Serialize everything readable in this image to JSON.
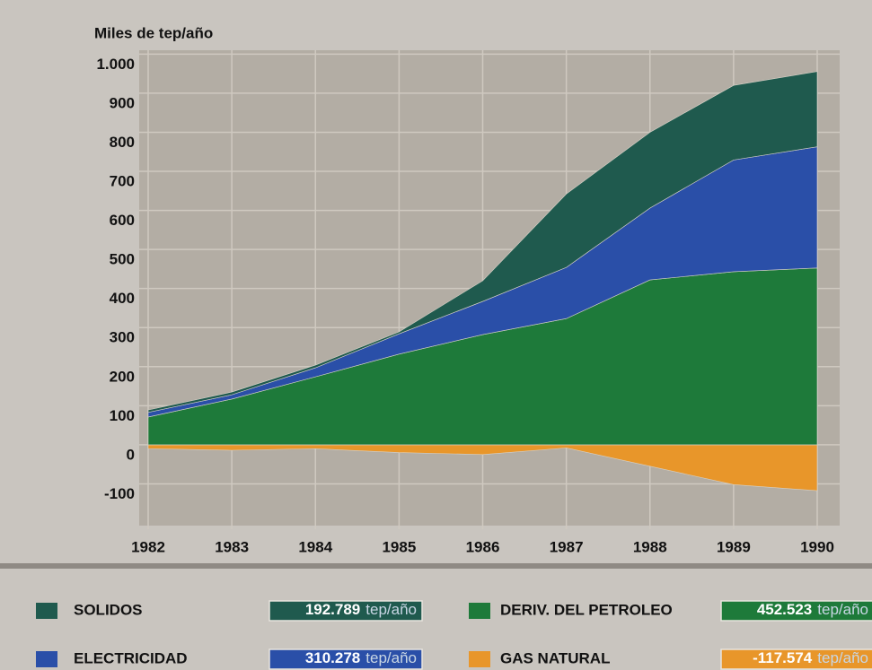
{
  "chart_data": {
    "type": "stacked_area",
    "y_label": "Miles de tep/año",
    "x": [
      1982,
      1983,
      1984,
      1985,
      1986,
      1987,
      1988,
      1989,
      1990
    ],
    "xlim": [
      1982,
      1990
    ],
    "xticks": [
      1982,
      1983,
      1984,
      1985,
      1986,
      1987,
      1988,
      1989,
      1990
    ],
    "ylim": [
      -200,
      1010
    ],
    "yticks": [
      -100,
      0,
      100,
      200,
      300,
      400,
      500,
      600,
      700,
      800,
      900,
      {
        "value": 1000,
        "label": "1.000"
      }
    ],
    "grid": true,
    "unit_label": "tep/año",
    "series": [
      {
        "name": "SOLIDOS",
        "color": "#1f5a4e",
        "values": [
          6,
          7,
          7,
          5,
          53,
          188,
          194,
          191,
          192.789
        ],
        "value_label": "192.789"
      },
      {
        "name": "ELECTRICIDAD",
        "color": "#2a4fa8",
        "values": [
          12,
          11,
          23,
          52,
          85,
          131,
          184,
          286,
          310.278
        ],
        "value_label": "310.278"
      },
      {
        "name": "DERIV. DEL PETROLEO",
        "color": "#1e7a3a",
        "values": [
          71,
          117,
          174,
          232,
          282,
          323,
          422,
          443,
          452.523
        ],
        "value_label": "452.523"
      },
      {
        "name": "GAS NATURAL",
        "color": "#e8962a",
        "values": [
          -10,
          -14,
          -10,
          -20,
          -25,
          -8,
          -55,
          -102,
          -117.574
        ],
        "value_label": "-117.574"
      }
    ]
  }
}
